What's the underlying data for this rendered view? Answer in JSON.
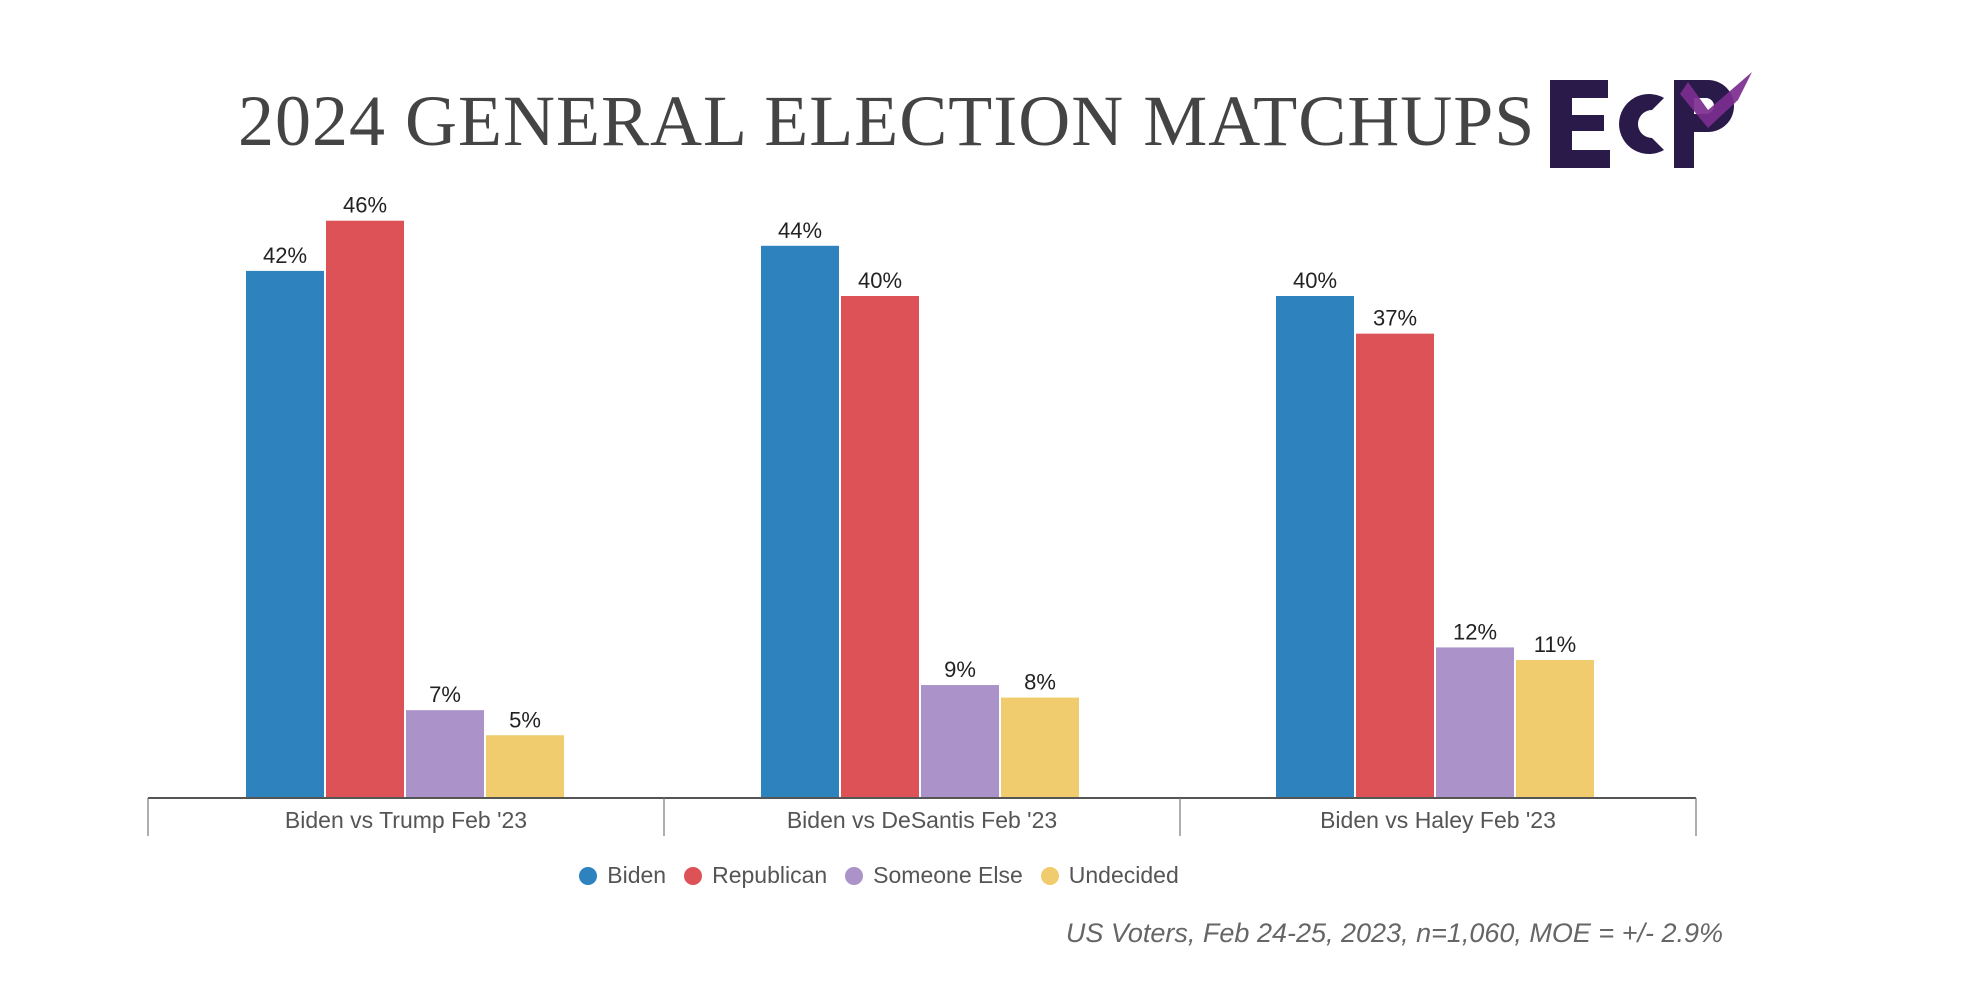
{
  "title": "2024 GENERAL ELECTION MATCHUPS",
  "logo": {
    "text": "ECP",
    "colors": {
      "dark": "#2A1A4A",
      "purple": "#7B2D8E"
    }
  },
  "chart_data": {
    "type": "bar",
    "title": "2024 GENERAL ELECTION MATCHUPS",
    "categories": [
      "Biden vs Trump Feb '23",
      "Biden vs DeSantis Feb '23",
      "Biden vs Haley Feb '23"
    ],
    "series": [
      {
        "name": "Biden",
        "color": "#2E82BE",
        "values": [
          42,
          44,
          40
        ],
        "labels": [
          "42%",
          "44%",
          "40%"
        ]
      },
      {
        "name": "Republican",
        "color": "#DC5256",
        "values": [
          46,
          40,
          37
        ],
        "labels": [
          "46%",
          "40%",
          "37%"
        ]
      },
      {
        "name": "Someone Else",
        "color": "#AB92C8",
        "values": [
          7,
          9,
          12
        ],
        "labels": [
          "7%",
          "9%",
          "12%"
        ]
      },
      {
        "name": "Undecided",
        "color": "#F0CC6E",
        "values": [
          5,
          8,
          11
        ],
        "labels": [
          "5%",
          "8%",
          "11%"
        ]
      }
    ],
    "ylim": [
      0,
      50
    ],
    "grid": false,
    "legend_position": "bottom-center"
  },
  "footnote": "US Voters, Feb 24-25, 2023, n=1,060, MOE = +/- 2.9%"
}
